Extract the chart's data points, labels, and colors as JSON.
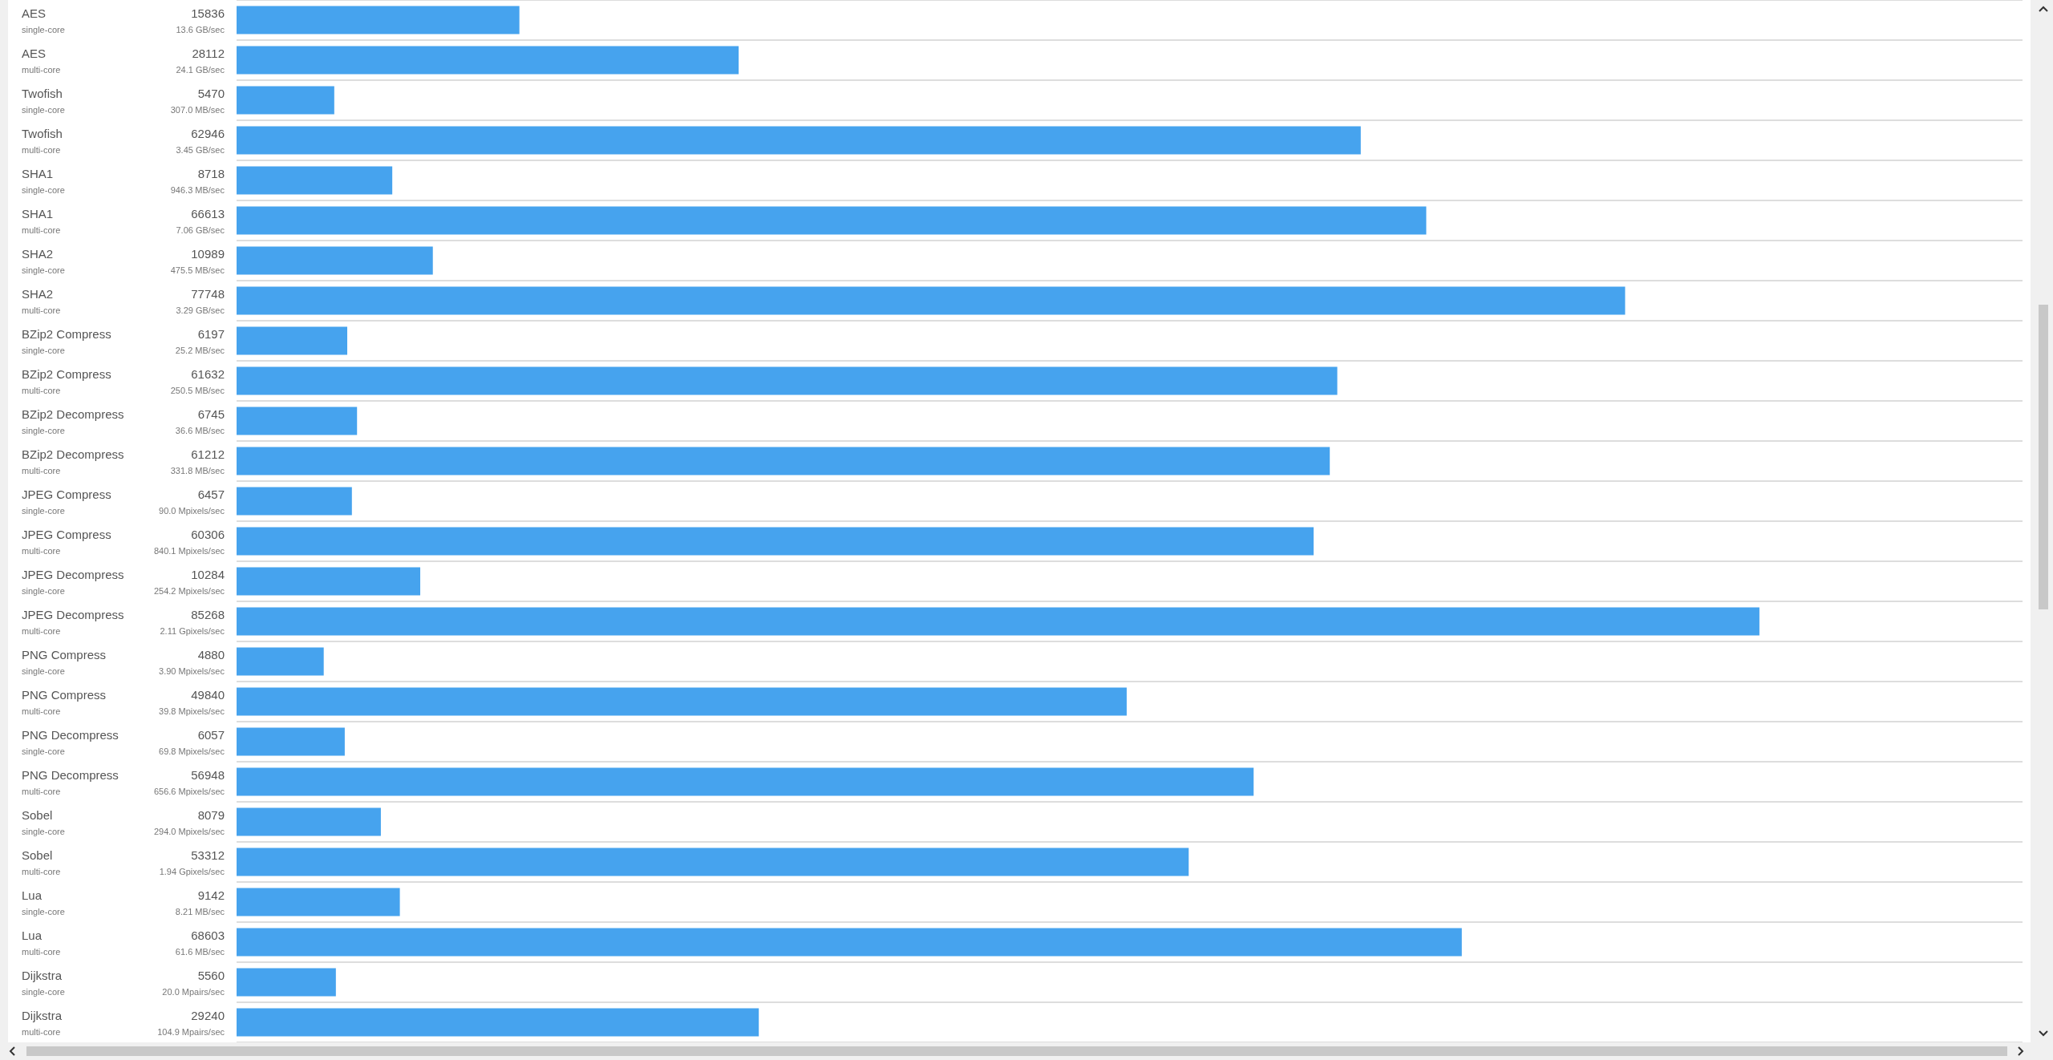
{
  "chart_data": {
    "type": "bar",
    "orientation": "horizontal",
    "data_labels": true,
    "grid": true,
    "categories": [
      "AES\nsingle-core",
      "AES\nmulti-core",
      "Twofish\nsingle-core",
      "Twofish\nmulti-core",
      "SHA1\nsingle-core",
      "SHA1\nmulti-core",
      "SHA2\nsingle-core",
      "SHA2\nmulti-core",
      "BZip2 Compress\nsingle-core",
      "BZip2 Compress\nmulti-core",
      "BZip2 Decompress\nsingle-core",
      "BZip2 Decompress\nmulti-core",
      "JPEG Compress\nsingle-core",
      "JPEG Compress\nmulti-core",
      "JPEG Decompress\nsingle-core",
      "JPEG Decompress\nmulti-core",
      "PNG Compress\nsingle-core",
      "PNG Compress\nmulti-core",
      "PNG Decompress\nsingle-core",
      "PNG Decompress\nmulti-core",
      "Sobel\nsingle-core",
      "Sobel\nmulti-core",
      "Lua\nsingle-core",
      "Lua\nmulti-core",
      "Dijkstra\nsingle-core",
      "Dijkstra\nmulti-core"
    ],
    "values": [
      15836,
      28112,
      5470,
      62946,
      8718,
      66613,
      10989,
      77748,
      6197,
      61632,
      6745,
      61212,
      6457,
      60306,
      10284,
      85268,
      4880,
      49840,
      6057,
      56948,
      8079,
      53312,
      9142,
      68603,
      5560,
      29240
    ],
    "color": "#46a3ee",
    "annotations": [
      "13.6 GB/sec",
      "24.1 GB/sec",
      "307.0 MB/sec",
      "3.45 GB/sec",
      "946.3 MB/sec",
      "7.06 GB/sec",
      "475.5 MB/sec",
      "3.29 GB/sec",
      "25.2 MB/sec",
      "250.5 MB/sec",
      "36.6 MB/sec",
      "331.8 MB/sec",
      "90.0 Mpixels/sec",
      "840.1 Mpixels/sec",
      "254.2 Mpixels/sec",
      "2.11 Gpixels/sec",
      "3.90 Mpixels/sec",
      "39.8 Mpixels/sec",
      "69.8 Mpixels/sec",
      "656.6 Mpixels/sec",
      "294.0 Mpixels/sec",
      "1.94 Gpixels/sec",
      "8.21 MB/sec",
      "61.6 MB/sec",
      "20.0 Mpairs/sec",
      "104.9 Mpairs/sec"
    ]
  }
}
